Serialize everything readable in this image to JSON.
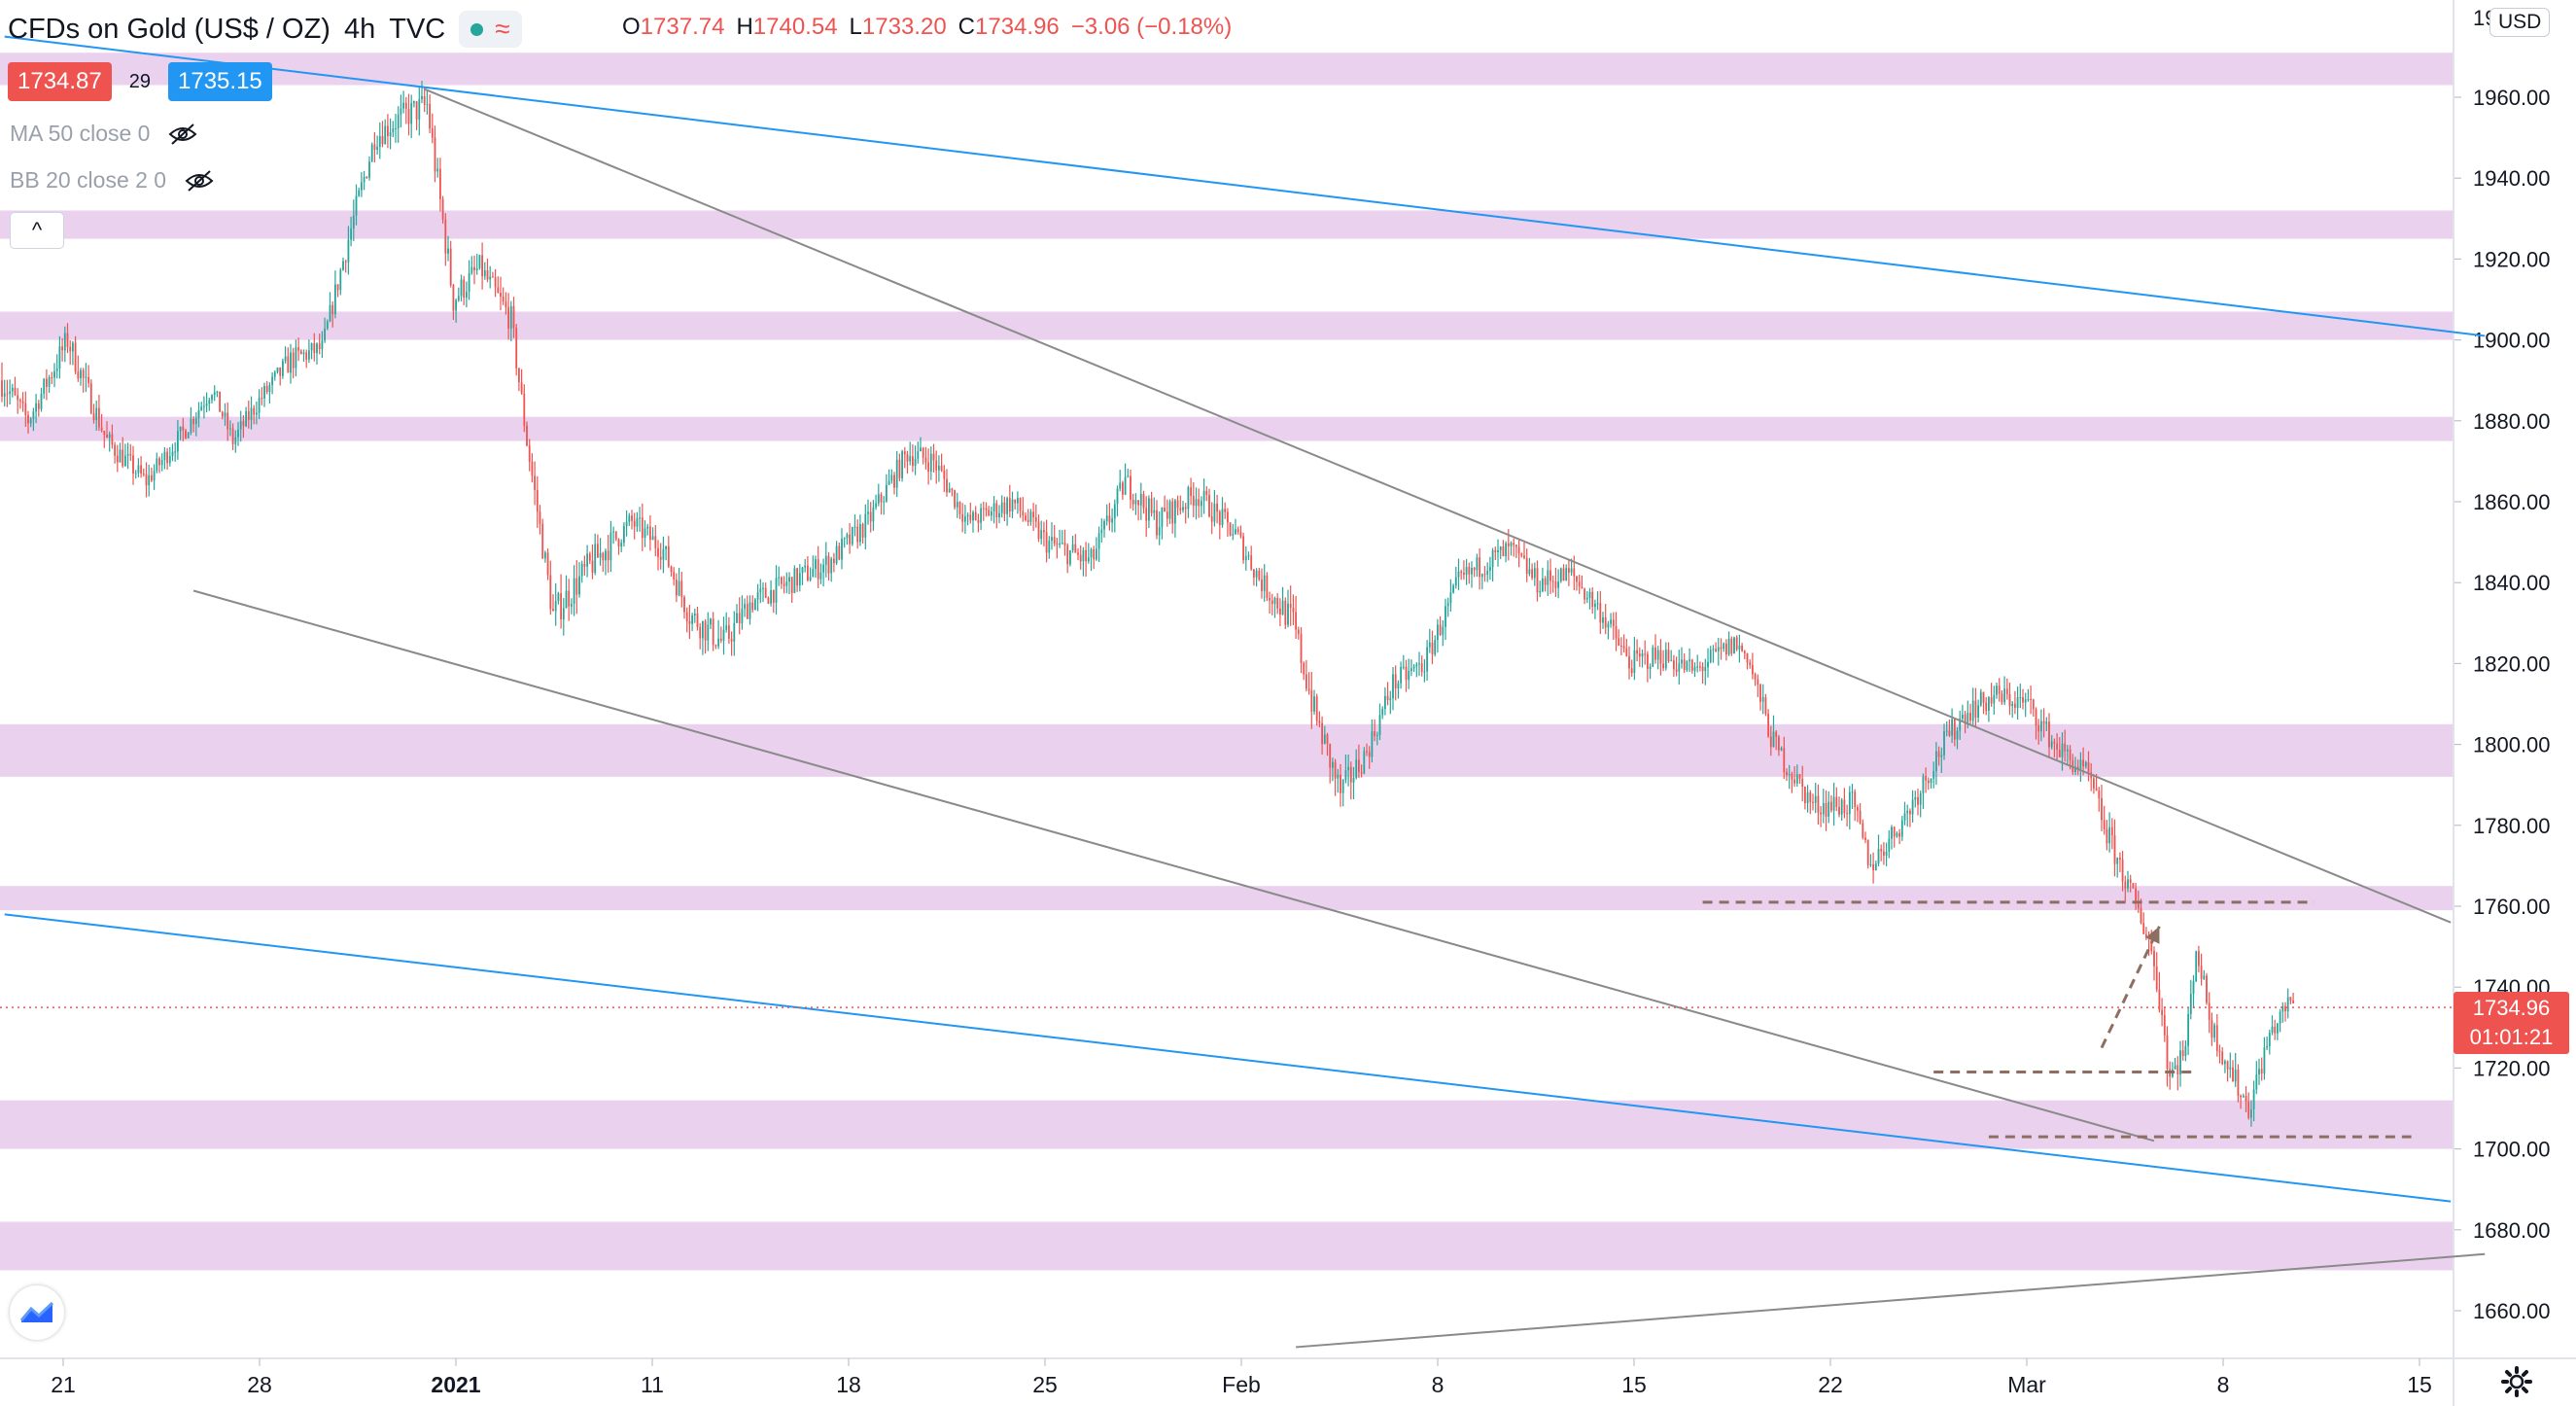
{
  "header": {
    "title": "CFDs on Gold (US$ / OZ)",
    "interval": "4h",
    "source": "TVC",
    "ohlc": {
      "o_label": "O",
      "o": "1737.74",
      "h_label": "H",
      "h": "1740.54",
      "l_label": "L",
      "l": "1733.20",
      "c_label": "C",
      "c": "1734.96",
      "change": "−3.06 (−0.18%)"
    },
    "bid": "1734.87",
    "spread": "29",
    "ask": "1735.15",
    "indicators": [
      "MA 50 close 0",
      "BB 20 close 2 0"
    ],
    "collapse_glyph": "^"
  },
  "price_scale": {
    "currency": "USD",
    "last_price": "1734.96",
    "countdown": "01:01:21",
    "top_partial": "19"
  },
  "colors": {
    "up": "#26a69a",
    "down": "#ef5350",
    "zone": "#e1bee7",
    "channel_blue": "#2196f3",
    "channel_gray": "#8a8a8a",
    "dashed": "#8d6e63",
    "last_price": "#ef5350"
  },
  "chart_data": {
    "type": "candlestick",
    "yticks": [
      1660,
      1680,
      1700,
      1720,
      1740,
      1760,
      1780,
      1800,
      1820,
      1840,
      1860,
      1880,
      1900,
      1920,
      1940,
      1960
    ],
    "xticks": [
      {
        "label": "21",
        "bold": false
      },
      {
        "label": "28",
        "bold": false
      },
      {
        "label": "2021",
        "bold": true
      },
      {
        "label": "11",
        "bold": false
      },
      {
        "label": "18",
        "bold": false
      },
      {
        "label": "25",
        "bold": false
      },
      {
        "label": "Feb",
        "bold": false
      },
      {
        "label": "8",
        "bold": false
      },
      {
        "label": "15",
        "bold": false
      },
      {
        "label": "22",
        "bold": false
      },
      {
        "label": "Mar",
        "bold": false
      },
      {
        "label": "8",
        "bold": false
      },
      {
        "label": "15",
        "bold": false
      }
    ],
    "zones": [
      [
        1963,
        1971
      ],
      [
        1925,
        1932
      ],
      [
        1900,
        1907
      ],
      [
        1875,
        1881
      ],
      [
        1792,
        1805
      ],
      [
        1759,
        1765
      ],
      [
        1700,
        1712
      ],
      [
        1670,
        1682
      ]
    ],
    "path": [
      [
        0,
        1890,
        8
      ],
      [
        10,
        1880,
        5
      ],
      [
        25,
        1900,
        7
      ],
      [
        40,
        1875,
        6
      ],
      [
        55,
        1865,
        5
      ],
      [
        70,
        1878,
        5
      ],
      [
        80,
        1888,
        5
      ],
      [
        88,
        1875,
        5
      ],
      [
        98,
        1885,
        5
      ],
      [
        110,
        1895,
        6
      ],
      [
        122,
        1898,
        5
      ],
      [
        132,
        1925,
        7
      ],
      [
        142,
        1950,
        6
      ],
      [
        152,
        1955,
        7
      ],
      [
        162,
        1958,
        8
      ],
      [
        172,
        1910,
        8
      ],
      [
        182,
        1918,
        6
      ],
      [
        194,
        1905,
        7
      ],
      [
        200,
        1875,
        6
      ],
      [
        210,
        1832,
        8
      ],
      [
        225,
        1845,
        8
      ],
      [
        240,
        1855,
        6
      ],
      [
        252,
        1848,
        6
      ],
      [
        262,
        1832,
        7
      ],
      [
        275,
        1825,
        8
      ],
      [
        285,
        1835,
        6
      ],
      [
        300,
        1840,
        6
      ],
      [
        315,
        1845,
        6
      ],
      [
        330,
        1855,
        6
      ],
      [
        345,
        1872,
        6
      ],
      [
        355,
        1870,
        6
      ],
      [
        368,
        1855,
        5
      ],
      [
        385,
        1860,
        6
      ],
      [
        398,
        1850,
        6
      ],
      [
        415,
        1845,
        7
      ],
      [
        428,
        1865,
        6
      ],
      [
        440,
        1855,
        7
      ],
      [
        455,
        1862,
        6
      ],
      [
        470,
        1852,
        6
      ],
      [
        480,
        1840,
        6
      ],
      [
        492,
        1830,
        8
      ],
      [
        500,
        1808,
        8
      ],
      [
        510,
        1788,
        8
      ],
      [
        520,
        1798,
        6
      ],
      [
        530,
        1815,
        6
      ],
      [
        542,
        1820,
        6
      ],
      [
        555,
        1840,
        6
      ],
      [
        565,
        1845,
        6
      ],
      [
        575,
        1848,
        6
      ],
      [
        585,
        1840,
        6
      ],
      [
        598,
        1842,
        6
      ],
      [
        610,
        1832,
        6
      ],
      [
        620,
        1820,
        6
      ],
      [
        632,
        1822,
        6
      ],
      [
        645,
        1818,
        6
      ],
      [
        660,
        1825,
        6
      ],
      [
        665,
        1822,
        5
      ],
      [
        675,
        1800,
        7
      ],
      [
        690,
        1785,
        6
      ],
      [
        705,
        1785,
        7
      ],
      [
        712,
        1770,
        6
      ],
      [
        725,
        1782,
        6
      ],
      [
        738,
        1798,
        7
      ],
      [
        748,
        1808,
        6
      ],
      [
        760,
        1812,
        6
      ],
      [
        772,
        1810,
        6
      ],
      [
        782,
        1800,
        6
      ],
      [
        795,
        1792,
        6
      ],
      [
        802,
        1778,
        7
      ],
      [
        810,
        1765,
        6
      ],
      [
        818,
        1752,
        7
      ],
      [
        822,
        1738,
        8
      ],
      [
        826,
        1718,
        8
      ],
      [
        832,
        1725,
        6
      ],
      [
        836,
        1750,
        6
      ],
      [
        842,
        1730,
        6
      ],
      [
        850,
        1718,
        7
      ],
      [
        856,
        1710,
        6
      ],
      [
        864,
        1728,
        6
      ],
      [
        872,
        1737,
        4
      ],
      [
        874,
        1735,
        3
      ]
    ],
    "trendlines": [
      {
        "style": "blue",
        "points": [
          [
            1,
            1975
          ],
          [
            946,
            1901
          ]
        ]
      },
      {
        "style": "blue",
        "points": [
          [
            1,
            1758
          ],
          [
            933,
            1687
          ]
        ]
      },
      {
        "style": "gray",
        "points": [
          [
            161,
            1962
          ],
          [
            933,
            1756
          ]
        ]
      },
      {
        "style": "gray",
        "points": [
          [
            73,
            1838
          ],
          [
            820,
            1702
          ]
        ]
      },
      {
        "style": "gray",
        "points": [
          [
            493,
            1651
          ],
          [
            946,
            1674
          ]
        ]
      }
    ],
    "levels": [
      {
        "x1": 648,
        "x2": 881,
        "y": 1761
      },
      {
        "x1": 736,
        "x2": 836,
        "y": 1719
      },
      {
        "x1": 757,
        "x2": 918,
        "y": 1703
      }
    ],
    "arrow": {
      "from": [
        800,
        1725
      ],
      "to": [
        822,
        1755
      ]
    }
  }
}
